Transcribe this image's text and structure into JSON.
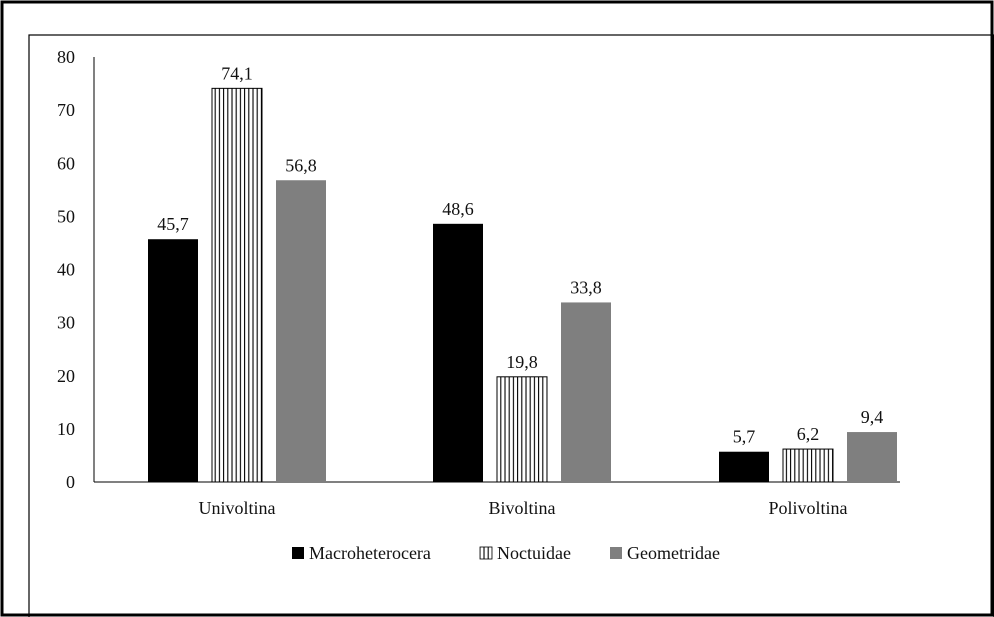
{
  "chart_data": {
    "type": "bar",
    "categories": [
      "Univoltina",
      "Bivoltina",
      "Polivoltina"
    ],
    "series": [
      {
        "name": "Macroheterocera",
        "values": [
          45.7,
          48.6,
          5.7
        ],
        "labels": [
          "45,7",
          "48,6",
          "5,7"
        ],
        "fill": "#000000",
        "pattern": "solid"
      },
      {
        "name": "Noctuidae",
        "values": [
          74.1,
          19.8,
          6.2
        ],
        "labels": [
          "74,1",
          "19,8",
          "6,2"
        ],
        "fill": "#ffffff",
        "pattern": "vertical-stripes"
      },
      {
        "name": "Geometridae",
        "values": [
          56.8,
          33.8,
          9.4
        ],
        "labels": [
          "56,8",
          "33,8",
          "9,4"
        ],
        "fill": "#7f7f7f",
        "pattern": "solid"
      }
    ],
    "yticks": [
      "0",
      "10",
      "20",
      "30",
      "40",
      "50",
      "60",
      "70",
      "80"
    ],
    "ylim": [
      0,
      80
    ],
    "grid": false,
    "legend_position": "bottom",
    "title": "",
    "xlabel": "",
    "ylabel": ""
  }
}
